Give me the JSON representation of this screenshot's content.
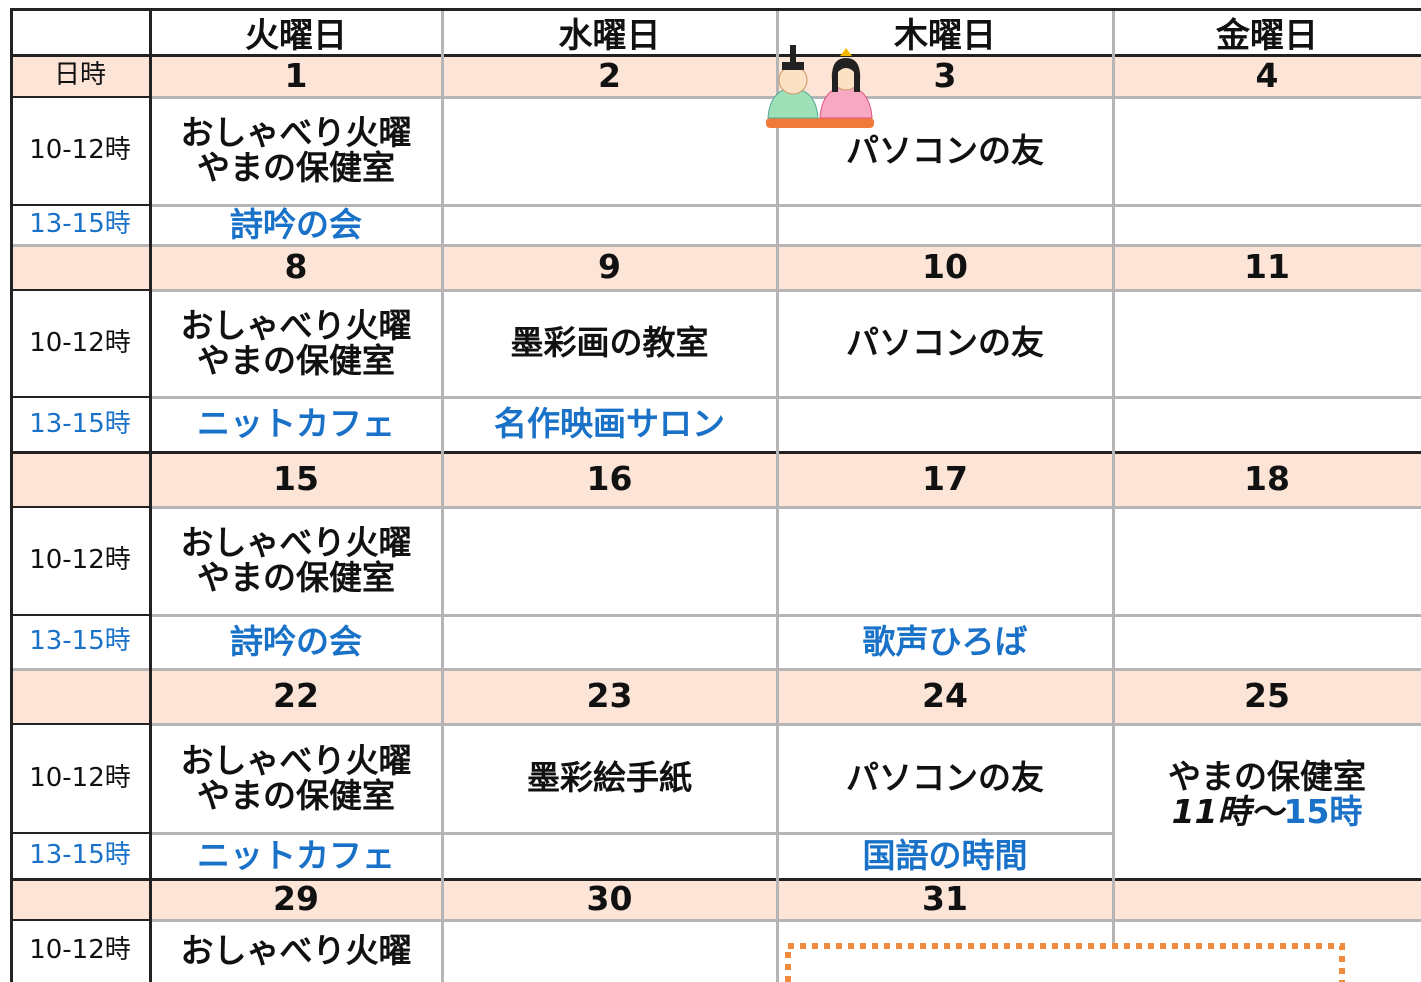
{
  "header": {
    "days": [
      "火曜日",
      "水曜日",
      "木曜日",
      "金曜日"
    ],
    "date_label": "日時"
  },
  "weeks": [
    {
      "dates": [
        1,
        2,
        3,
        4
      ],
      "time_labels": [
        "10-12時",
        "13-15時"
      ],
      "morning": [
        [
          "おしゃべり火曜",
          "やまの保健室"
        ],
        null,
        [
          "パソコンの友"
        ],
        null
      ],
      "afternoon": [
        [
          "詩吟の会"
        ],
        null,
        null,
        null
      ]
    },
    {
      "dates": [
        8,
        9,
        10,
        11
      ],
      "time_labels": [
        "10-12時",
        "13-15時"
      ],
      "morning": [
        [
          "おしゃべり火曜",
          "やまの保健室"
        ],
        [
          "墨彩画の教室"
        ],
        [
          "パソコンの友"
        ],
        null
      ],
      "afternoon": [
        [
          "ニットカフェ"
        ],
        [
          "名作映画サロン"
        ],
        null,
        null
      ]
    },
    {
      "dates": [
        15,
        16,
        17,
        18
      ],
      "time_labels": [
        "10-12時",
        "13-15時"
      ],
      "morning": [
        [
          "おしゃべり火曜",
          "やまの保健室"
        ],
        null,
        null,
        null
      ],
      "afternoon": [
        [
          "詩吟の会"
        ],
        null,
        [
          "歌声ひろば"
        ],
        null
      ]
    },
    {
      "dates": [
        22,
        23,
        24,
        25
      ],
      "time_labels": [
        "10-12時",
        "13-15時"
      ],
      "morning": [
        [
          "おしゃべり火曜",
          "やまの保健室"
        ],
        [
          "墨彩絵手紙"
        ],
        [
          "パソコンの友"
        ],
        null
      ],
      "afternoon": [
        [
          "ニットカフェ"
        ],
        null,
        [
          "国語の時間"
        ],
        null
      ],
      "span": {
        "lines": [
          "やまの保健室"
        ],
        "time_start": "11時～",
        "time_end": "15時"
      }
    },
    {
      "dates": [
        29,
        30,
        31,
        null
      ],
      "time_labels": [
        "10-12時"
      ],
      "morning": [
        [
          "おしゃべり火曜"
        ],
        null,
        null,
        null
      ]
    }
  ]
}
